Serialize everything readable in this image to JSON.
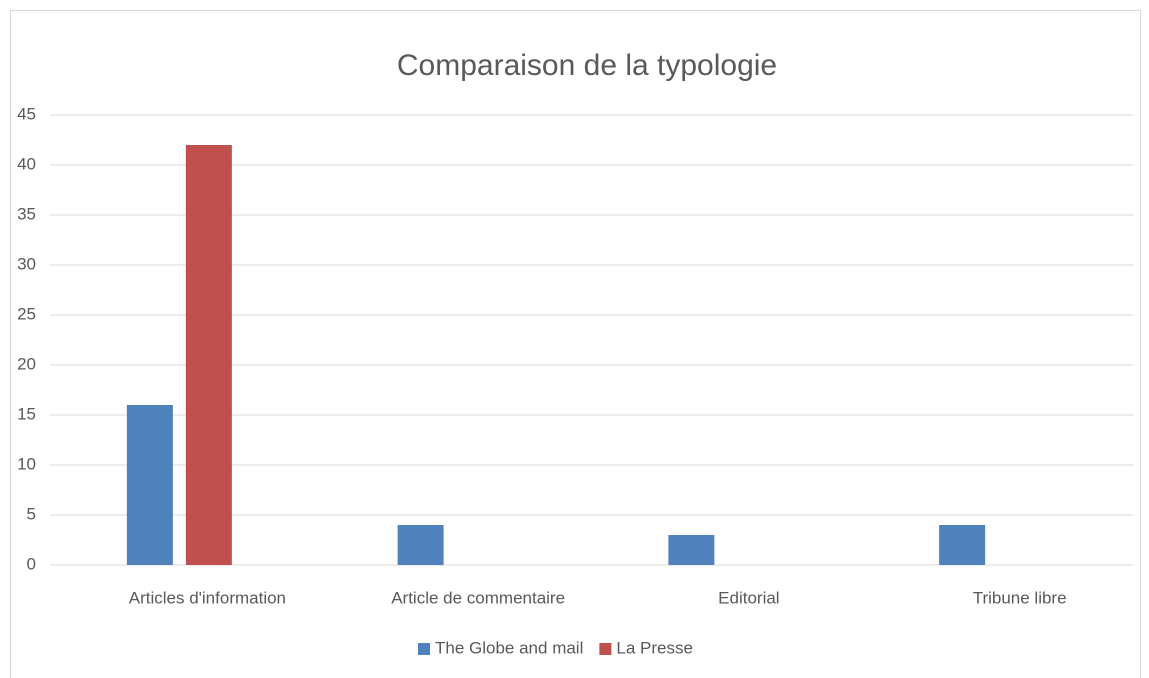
{
  "chart_data": {
    "type": "bar",
    "title": "Comparaison de la typologie",
    "categories": [
      "Articles d'information",
      "Article de commentaire",
      "Editorial",
      "Tribune libre"
    ],
    "series": [
      {
        "name": "The Globe and mail",
        "color": "#4f81bd",
        "values": [
          16,
          4,
          3,
          4
        ]
      },
      {
        "name": "La Presse",
        "color": "#c0504d",
        "values": [
          42,
          0,
          0,
          0
        ]
      }
    ],
    "ylim": [
      0,
      45
    ],
    "yticks": [
      0,
      5,
      10,
      15,
      20,
      25,
      30,
      35,
      40,
      45
    ],
    "grid": true,
    "legend": "bottom"
  }
}
